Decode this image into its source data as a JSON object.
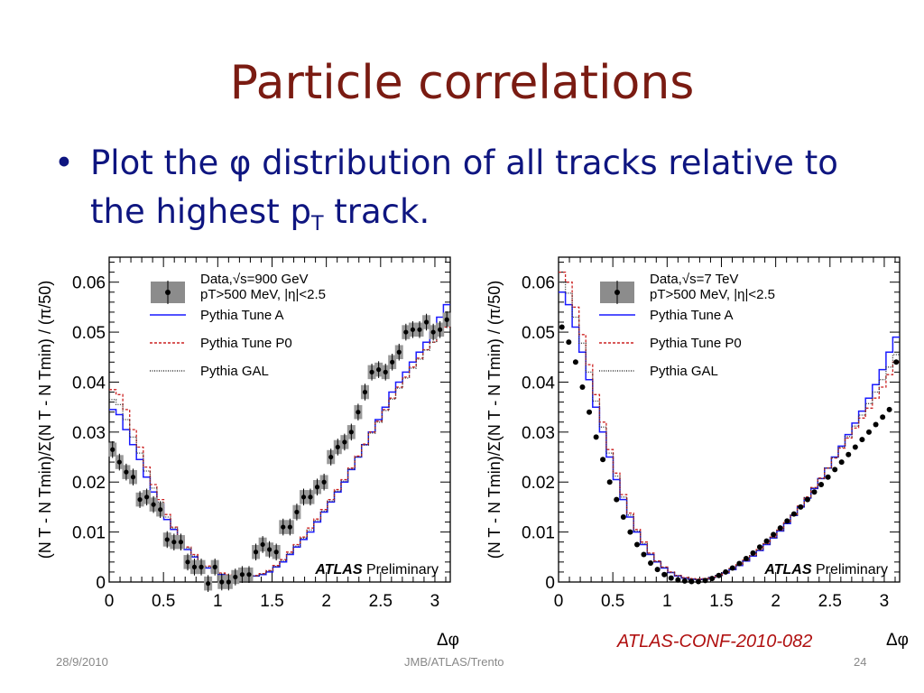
{
  "slide": {
    "title": "Particle correlations",
    "bullet_line1": "Plot the φ distribution of all tracks relative to",
    "bullet_line2_a": "the highest p",
    "bullet_line2_sub": "T",
    "bullet_line2_b": " track.",
    "reference": "ATLAS-CONF-2010-082",
    "footer_date": "28/9/2010",
    "footer_center": "JMB/ATLAS/Trento",
    "page_number": "24",
    "title_color": "#7a1b12",
    "text_color": "#0e1580"
  },
  "chart_data": [
    {
      "type": "line",
      "ylabel": "(N T - N Tmin)/Σ(N T - N Tmin) / (π/50)",
      "xlabel": "Δφ",
      "xlim": [
        0,
        3.1416
      ],
      "ylim": [
        0,
        0.065
      ],
      "xticks": [
        "0",
        "0.5",
        "1",
        "1.5",
        "2",
        "2.5",
        "3"
      ],
      "yticks": [
        "0",
        "0.01",
        "0.02",
        "0.03",
        "0.04",
        "0.05",
        "0.06"
      ],
      "annotation_bold": "ATLAS",
      "annotation_text": "Preliminary",
      "legend": {
        "placement": "top-left",
        "data_label": "Data,√s=900 GeV",
        "data_label2": "pT>500 MeV, |η|<2.5",
        "entries": [
          "Pythia Tune A",
          "Pythia Tune P0",
          "Pythia GAL"
        ]
      },
      "data": {
        "x": [
          0.031,
          0.094,
          0.157,
          0.22,
          0.283,
          0.346,
          0.408,
          0.471,
          0.534,
          0.597,
          0.66,
          0.723,
          0.785,
          0.848,
          0.911,
          0.974,
          1.037,
          1.1,
          1.162,
          1.225,
          1.288,
          1.351,
          1.414,
          1.476,
          1.539,
          1.602,
          1.665,
          1.728,
          1.791,
          1.853,
          1.916,
          1.979,
          2.042,
          2.105,
          2.168,
          2.23,
          2.293,
          2.356,
          2.419,
          2.482,
          2.545,
          2.607,
          2.67,
          2.733,
          2.796,
          2.859,
          2.922,
          2.985,
          3.047,
          3.11
        ],
        "y": [
          0.0265,
          0.024,
          0.022,
          0.021,
          0.0165,
          0.017,
          0.0155,
          0.0145,
          0.0085,
          0.008,
          0.008,
          0.004,
          0.003,
          0.003,
          -0.0003,
          0.003,
          0.0,
          0.0,
          0.001,
          0.0015,
          0.0015,
          0.006,
          0.0075,
          0.0065,
          0.006,
          0.011,
          0.011,
          0.014,
          0.017,
          0.017,
          0.019,
          0.02,
          0.025,
          0.027,
          0.028,
          0.03,
          0.034,
          0.038,
          0.042,
          0.0425,
          0.042,
          0.044,
          0.046,
          0.05,
          0.0505,
          0.0505,
          0.052,
          0.05,
          0.0505,
          0.0525
        ]
      },
      "series": [
        {
          "name": "Pythia Tune A",
          "color": "#1a1aff",
          "style": "solid",
          "values": [
            0.0345,
            0.0335,
            0.0305,
            0.0275,
            0.0245,
            0.021,
            0.018,
            0.0155,
            0.0125,
            0.0105,
            0.0085,
            0.0065,
            0.005,
            0.0038,
            0.0028,
            0.002,
            0.0015,
            0.0012,
            0.001,
            0.001,
            0.001,
            0.0012,
            0.0015,
            0.002,
            0.003,
            0.004,
            0.0055,
            0.007,
            0.0085,
            0.01,
            0.012,
            0.014,
            0.016,
            0.018,
            0.02,
            0.0225,
            0.025,
            0.0275,
            0.03,
            0.0325,
            0.035,
            0.038,
            0.04,
            0.042,
            0.044,
            0.046,
            0.048,
            0.05,
            0.053,
            0.0555
          ]
        },
        {
          "name": "Pythia Tune P0",
          "color": "#cc2222",
          "style": "dashed",
          "values": [
            0.0385,
            0.0375,
            0.0345,
            0.0305,
            0.027,
            0.023,
            0.0195,
            0.0165,
            0.0135,
            0.011,
            0.009,
            0.007,
            0.0055,
            0.0042,
            0.0032,
            0.0024,
            0.0018,
            0.0014,
            0.0012,
            0.0011,
            0.0011,
            0.0013,
            0.0017,
            0.0023,
            0.0033,
            0.0045,
            0.006,
            0.0075,
            0.009,
            0.0108,
            0.0126,
            0.0145,
            0.0165,
            0.0185,
            0.0205,
            0.0228,
            0.0252,
            0.0276,
            0.03,
            0.0322,
            0.0345,
            0.0368,
            0.039,
            0.041,
            0.043,
            0.0448,
            0.0465,
            0.048,
            0.0495,
            0.051
          ]
        },
        {
          "name": "Pythia GAL",
          "color": "#333333",
          "style": "dotted",
          "values": [
            0.0365,
            0.0355,
            0.0325,
            0.029,
            0.0258,
            0.0222,
            0.0188,
            0.016,
            0.013,
            0.0108,
            0.0088,
            0.0068,
            0.0052,
            0.004,
            0.003,
            0.0022,
            0.0016,
            0.0013,
            0.0011,
            0.001,
            0.0011,
            0.0012,
            0.0016,
            0.0022,
            0.0031,
            0.0043,
            0.0057,
            0.0072,
            0.0088,
            0.0104,
            0.0123,
            0.0142,
            0.0162,
            0.0182,
            0.0202,
            0.0226,
            0.025,
            0.0274,
            0.0298,
            0.032,
            0.0343,
            0.0366,
            0.0388,
            0.0408,
            0.0428,
            0.0446,
            0.0464,
            0.048,
            0.0498,
            0.0515
          ]
        }
      ]
    },
    {
      "type": "line",
      "ylabel": "(N T - N Tmin)/Σ(N T - N Tmin) / (π/50)",
      "xlabel": "Δφ",
      "xlim": [
        0,
        3.1416
      ],
      "ylim": [
        0,
        0.065
      ],
      "xticks": [
        "0",
        "0.5",
        "1",
        "1.5",
        "2",
        "2.5",
        "3"
      ],
      "yticks": [
        "0",
        "0.01",
        "0.02",
        "0.03",
        "0.04",
        "0.05",
        "0.06"
      ],
      "annotation_bold": "ATLAS",
      "annotation_text": "Preliminary",
      "legend": {
        "placement": "top-left",
        "data_label": "Data,√s=7 TeV",
        "data_label2": "pT>500 MeV, |η|<2.5",
        "entries": [
          "Pythia Tune A",
          "Pythia Tune P0",
          "Pythia GAL"
        ]
      },
      "data": {
        "x": [
          0.031,
          0.094,
          0.157,
          0.22,
          0.283,
          0.346,
          0.408,
          0.471,
          0.534,
          0.597,
          0.66,
          0.723,
          0.785,
          0.848,
          0.911,
          0.974,
          1.037,
          1.1,
          1.162,
          1.225,
          1.288,
          1.351,
          1.414,
          1.476,
          1.539,
          1.602,
          1.665,
          1.728,
          1.791,
          1.853,
          1.916,
          1.979,
          2.042,
          2.105,
          2.168,
          2.23,
          2.293,
          2.356,
          2.419,
          2.482,
          2.545,
          2.607,
          2.67,
          2.733,
          2.796,
          2.859,
          2.922,
          2.985,
          3.047,
          3.11
        ],
        "y": [
          0.051,
          0.048,
          0.044,
          0.039,
          0.034,
          0.029,
          0.0245,
          0.02,
          0.0165,
          0.013,
          0.01,
          0.0075,
          0.0055,
          0.0038,
          0.0025,
          0.0015,
          0.0008,
          0.0004,
          0.0002,
          0.0001,
          0.0001,
          0.0003,
          0.0007,
          0.0013,
          0.002,
          0.0028,
          0.0037,
          0.0047,
          0.0058,
          0.007,
          0.0082,
          0.0095,
          0.0108,
          0.0122,
          0.0136,
          0.015,
          0.0165,
          0.018,
          0.0195,
          0.021,
          0.0225,
          0.024,
          0.0255,
          0.027,
          0.0285,
          0.03,
          0.0315,
          0.033,
          0.0345,
          0.044
        ]
      },
      "series": [
        {
          "name": "Pythia Tune A",
          "color": "#1a1aff",
          "style": "solid",
          "values": [
            0.058,
            0.0555,
            0.051,
            0.046,
            0.0405,
            0.035,
            0.03,
            0.025,
            0.0205,
            0.0165,
            0.013,
            0.01,
            0.0075,
            0.0055,
            0.004,
            0.0028,
            0.0019,
            0.0012,
            0.0008,
            0.0006,
            0.0005,
            0.0006,
            0.0009,
            0.0013,
            0.0018,
            0.0025,
            0.0033,
            0.0042,
            0.0052,
            0.0063,
            0.0075,
            0.0088,
            0.0102,
            0.0117,
            0.0133,
            0.015,
            0.0168,
            0.0187,
            0.0207,
            0.0228,
            0.025,
            0.0272,
            0.0295,
            0.0318,
            0.0342,
            0.0368,
            0.0395,
            0.0425,
            0.046,
            0.049
          ]
        },
        {
          "name": "Pythia Tune P0",
          "color": "#cc2222",
          "style": "dashed",
          "values": [
            0.062,
            0.06,
            0.055,
            0.0495,
            0.0435,
            0.0375,
            0.032,
            0.0265,
            0.0218,
            0.0175,
            0.0138,
            0.0105,
            0.008,
            0.0058,
            0.0042,
            0.003,
            0.002,
            0.0013,
            0.0009,
            0.0007,
            0.0006,
            0.0007,
            0.001,
            0.0014,
            0.002,
            0.0027,
            0.0035,
            0.0044,
            0.0054,
            0.0065,
            0.0077,
            0.009,
            0.0104,
            0.0119,
            0.0135,
            0.0152,
            0.017,
            0.0189,
            0.0208,
            0.0228,
            0.0248,
            0.0268,
            0.0288,
            0.0308,
            0.0328,
            0.0348,
            0.0368,
            0.039,
            0.0415,
            0.044
          ]
        },
        {
          "name": "Pythia GAL",
          "color": "#333333",
          "style": "dotted",
          "values": [
            0.06,
            0.0578,
            0.053,
            0.0478,
            0.042,
            0.0362,
            0.031,
            0.0258,
            0.0212,
            0.017,
            0.0134,
            0.0102,
            0.0077,
            0.0056,
            0.0041,
            0.0029,
            0.0019,
            0.0013,
            0.0008,
            0.0006,
            0.0005,
            0.0006,
            0.0009,
            0.0013,
            0.0019,
            0.0026,
            0.0034,
            0.0043,
            0.0053,
            0.0064,
            0.0076,
            0.0089,
            0.0103,
            0.0118,
            0.0134,
            0.0151,
            0.0169,
            0.0188,
            0.0207,
            0.0228,
            0.0249,
            0.027,
            0.0291,
            0.0312,
            0.0334,
            0.0357,
            0.038,
            0.0405,
            0.043,
            0.0455
          ]
        }
      ]
    }
  ]
}
